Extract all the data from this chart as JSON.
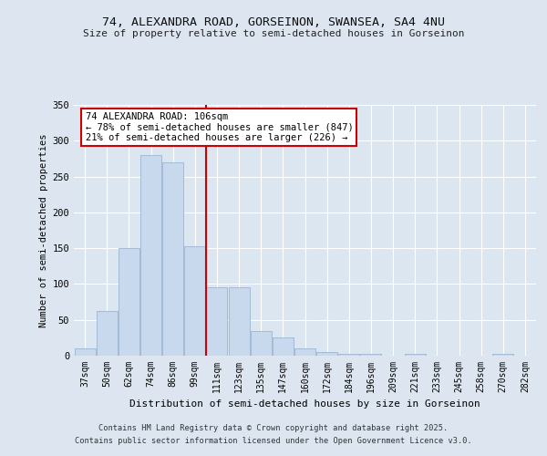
{
  "title1": "74, ALEXANDRA ROAD, GORSEINON, SWANSEA, SA4 4NU",
  "title2": "Size of property relative to semi-detached houses in Gorseinon",
  "xlabel": "Distribution of semi-detached houses by size in Gorseinon",
  "ylabel": "Number of semi-detached properties",
  "categories": [
    "37sqm",
    "50sqm",
    "62sqm",
    "74sqm",
    "86sqm",
    "99sqm",
    "111sqm",
    "123sqm",
    "135sqm",
    "147sqm",
    "160sqm",
    "172sqm",
    "184sqm",
    "196sqm",
    "209sqm",
    "221sqm",
    "233sqm",
    "245sqm",
    "258sqm",
    "270sqm",
    "282sqm"
  ],
  "values": [
    10,
    63,
    150,
    280,
    270,
    153,
    95,
    95,
    35,
    25,
    10,
    5,
    3,
    2,
    0,
    2,
    0,
    0,
    0,
    2,
    0
  ],
  "bar_color": "#c9d9ed",
  "bar_edge_color": "#9ab4d0",
  "vline_x_index": 6,
  "vline_color": "#cc0000",
  "annotation_title": "74 ALEXANDRA ROAD: 106sqm",
  "annotation_line1": "← 78% of semi-detached houses are smaller (847)",
  "annotation_line2": "21% of semi-detached houses are larger (226) →",
  "annotation_box_color": "#cc0000",
  "ylim": [
    0,
    350
  ],
  "yticks": [
    0,
    50,
    100,
    150,
    200,
    250,
    300,
    350
  ],
  "footer1": "Contains HM Land Registry data © Crown copyright and database right 2025.",
  "footer2": "Contains public sector information licensed under the Open Government Licence v3.0.",
  "bg_color": "#dde6f0",
  "plot_bg": "#dce6f1",
  "title1_fontsize": 9.5,
  "title2_fontsize": 8.0,
  "xlabel_fontsize": 8.0,
  "ylabel_fontsize": 7.5,
  "tick_fontsize": 7.0,
  "annotation_fontsize": 7.5,
  "footer_fontsize": 6.2
}
